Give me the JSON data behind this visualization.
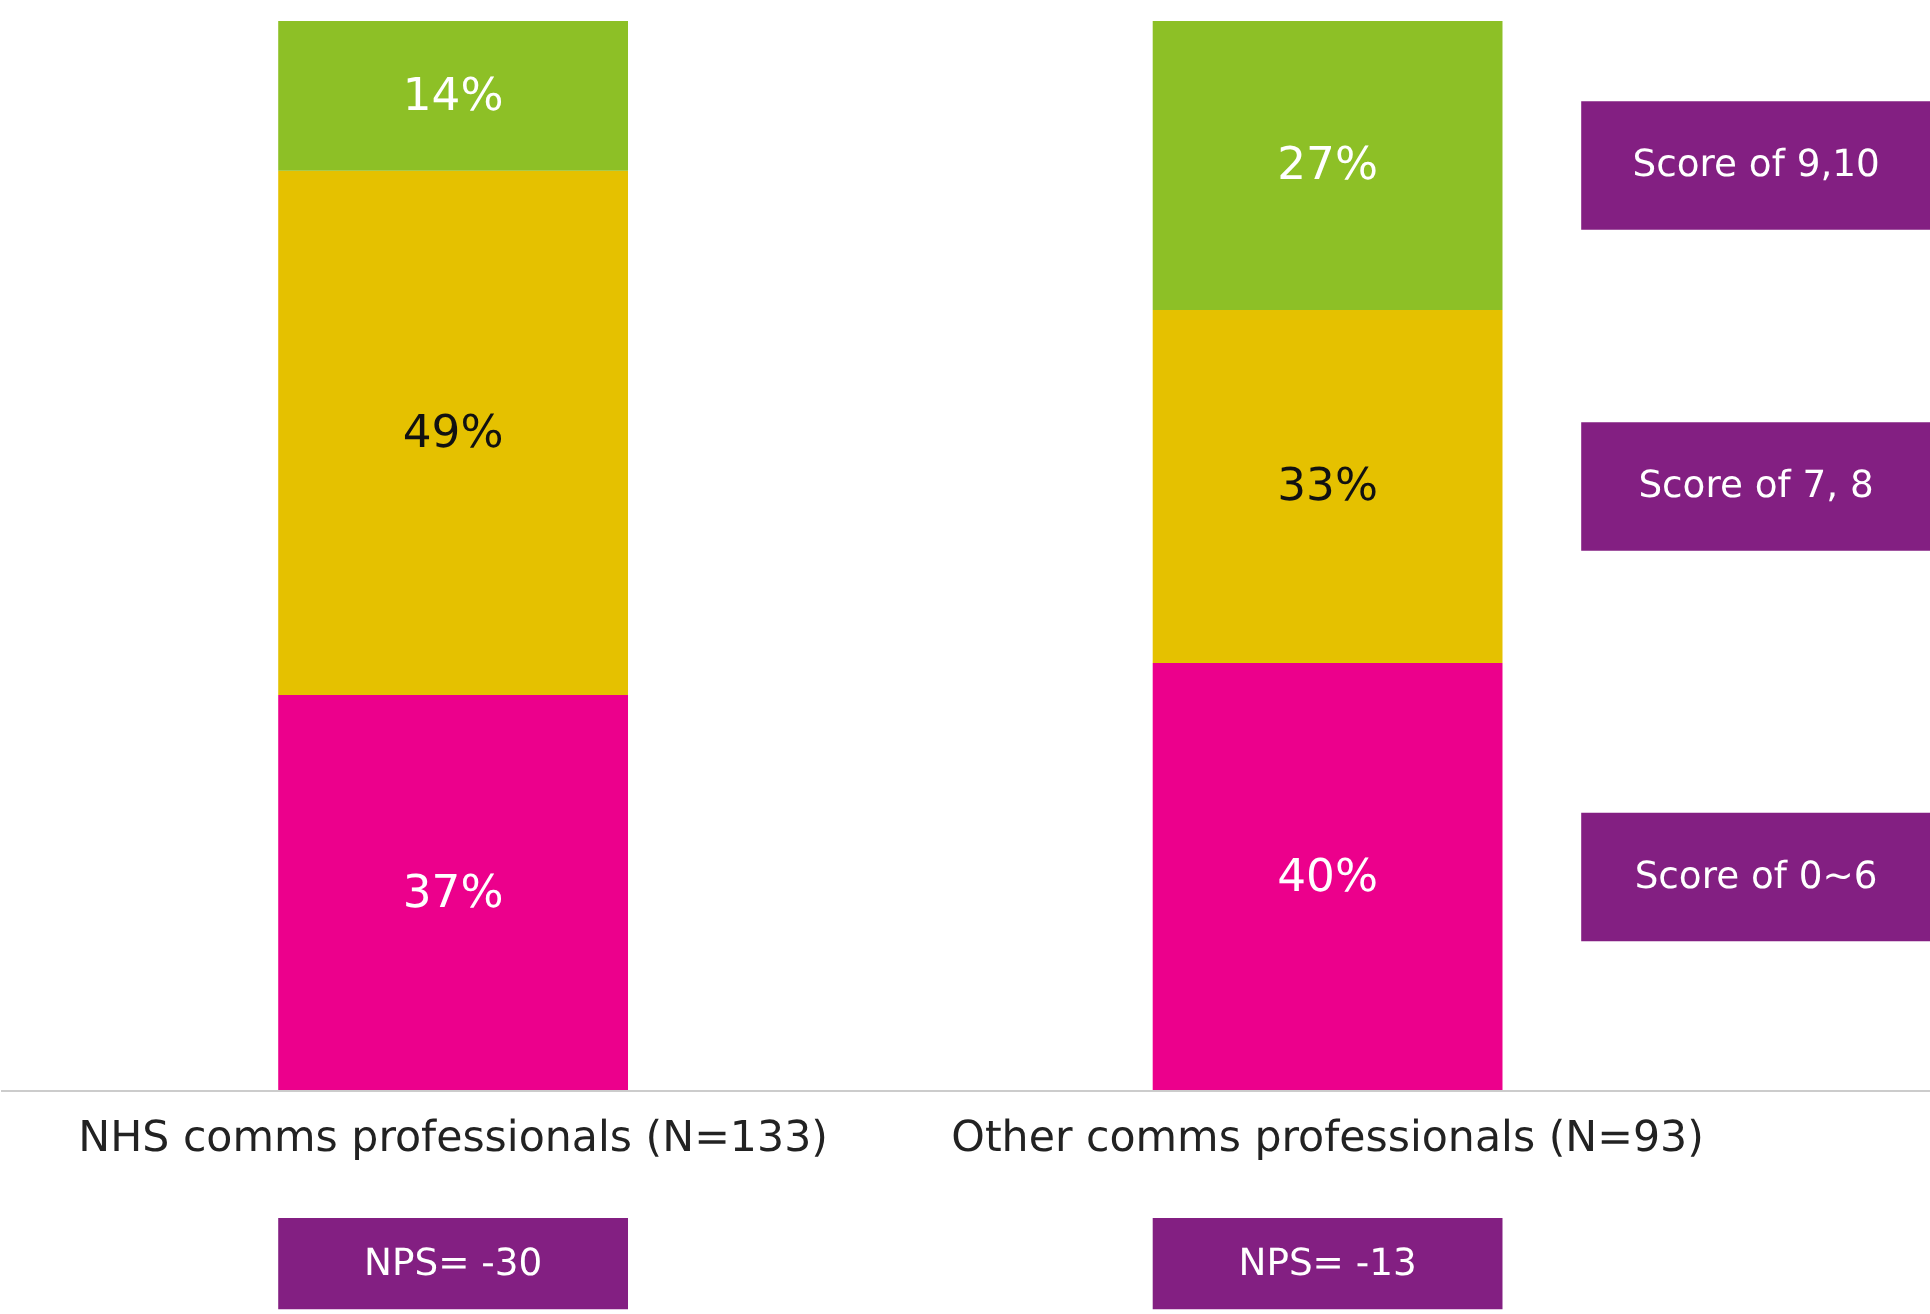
{
  "chart_data": {
    "type": "bar",
    "stacked": true,
    "tick_labels": "x",
    "grid": false,
    "categories": [
      "NHS comms professionals (N=133)",
      "Other comms professionals (N=93)"
    ],
    "series": [
      {
        "name": "Score of 0~6",
        "color": "#ec008c",
        "values": [
          37,
          40
        ],
        "value_labels": [
          "37%",
          "40%"
        ]
      },
      {
        "name": "Score of 7, 8",
        "color": "#e5c100",
        "values": [
          49,
          33
        ],
        "value_labels": [
          "49%",
          "33%"
        ]
      },
      {
        "name": "Score of 9,10",
        "color": "#8dc026",
        "values": [
          14,
          27
        ],
        "value_labels": [
          "14%",
          "27%"
        ]
      }
    ],
    "annotations": [
      "NPS= -30",
      "NPS= -13"
    ]
  }
}
